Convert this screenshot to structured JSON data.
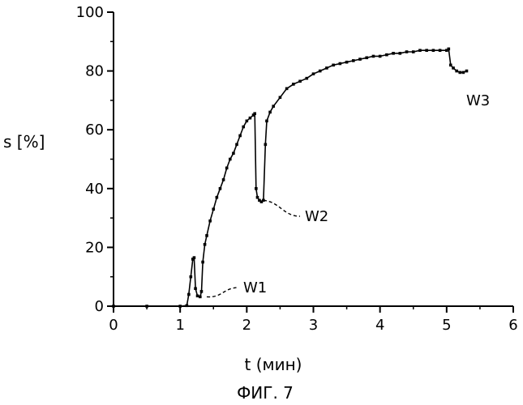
{
  "chart_data": {
    "type": "line",
    "title": "",
    "xlabel": "t (мин)",
    "ylabel": "s [%]",
    "caption": "ФИГ. 7",
    "xlim": [
      0,
      6
    ],
    "ylim": [
      0,
      100
    ],
    "x_ticks": [
      "0",
      "1",
      "2",
      "3",
      "4",
      "5",
      "6"
    ],
    "y_ticks": [
      "0",
      "20",
      "40",
      "60",
      "80",
      "100"
    ],
    "grid": false,
    "series": [
      {
        "x": [
          0,
          0.5,
          1.0,
          1.1,
          1.13,
          1.16,
          1.19,
          1.21,
          1.23,
          1.26,
          1.3,
          1.32,
          1.34,
          1.37,
          1.4,
          1.45,
          1.5,
          1.55,
          1.6,
          1.65,
          1.7,
          1.75,
          1.8,
          1.85,
          1.9,
          1.95,
          2.0,
          2.05,
          2.1,
          2.12,
          2.14,
          2.16,
          2.19,
          2.22,
          2.25,
          2.28,
          2.3,
          2.35,
          2.4,
          2.5,
          2.6,
          2.7,
          2.8,
          2.9,
          3.0,
          3.1,
          3.2,
          3.3,
          3.4,
          3.5,
          3.6,
          3.7,
          3.8,
          3.9,
          4.0,
          4.1,
          4.2,
          4.3,
          4.4,
          4.5,
          4.6,
          4.7,
          4.8,
          4.9,
          5.0,
          5.03,
          5.06,
          5.1,
          5.15,
          5.2,
          5.25,
          5.3
        ],
        "y": [
          0,
          0,
          0,
          0.2,
          4,
          10,
          16,
          16.5,
          6,
          3.5,
          3.2,
          5,
          15,
          21,
          24,
          29,
          33,
          37,
          40,
          43,
          47,
          50,
          52,
          55,
          58,
          61,
          63,
          64,
          65,
          65.5,
          40,
          37,
          36,
          35.5,
          36,
          55,
          63,
          66,
          68,
          71,
          74,
          75.5,
          76.5,
          77.5,
          79,
          80,
          81,
          82,
          82.5,
          83,
          83.5,
          84,
          84.5,
          85,
          85,
          85.5,
          86,
          86,
          86.5,
          86.5,
          87,
          87,
          87,
          87,
          87,
          87.5,
          82,
          81,
          80,
          79.5,
          79.5,
          80
        ]
      }
    ],
    "annotations": [
      {
        "label": "W1",
        "x": 1.4,
        "y": 3.2
      },
      {
        "label": "W2",
        "x": 2.25,
        "y": 36
      },
      {
        "label": "W3",
        "x": 5.1,
        "y": 80
      }
    ]
  }
}
